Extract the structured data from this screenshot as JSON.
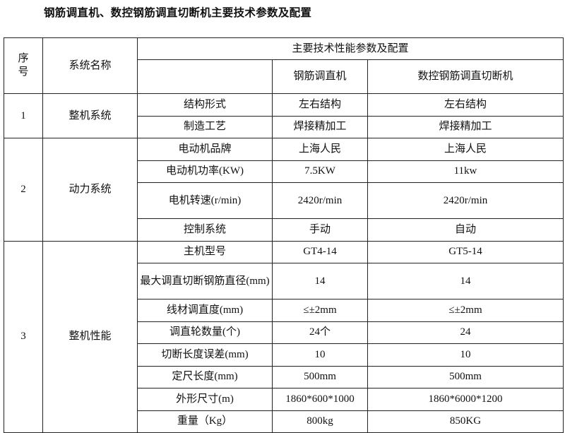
{
  "title": "钢筋调直机、数控钢筋调直切断机主要技术参数及配置",
  "header": {
    "seq": "序号",
    "system_name": "系统名称",
    "params_group": "主要技术性能参数及配置",
    "param_blank": "",
    "machine_a": "钢筋调直机",
    "machine_b": "数控钢筋调直切断机"
  },
  "groups": [
    {
      "seq": "1",
      "name": "整机系统",
      "rows": [
        {
          "param": "结构形式",
          "a": "左右结构",
          "b": "左右结构"
        },
        {
          "param": "制造工艺",
          "a": "焊接精加工",
          "b": "焊接精加工"
        }
      ]
    },
    {
      "seq": "2",
      "name": "动力系统",
      "rows": [
        {
          "param": "电动机品牌",
          "a": "上海人民",
          "b": "上海人民"
        },
        {
          "param": "电动机功率(KW)",
          "a": "7.5KW",
          "b": "11kw"
        },
        {
          "param": "电机转速(r/min)",
          "a": "2420r/min",
          "b": "2420r/min"
        },
        {
          "param": "控制系统",
          "a": "手动",
          "b": "自动"
        }
      ]
    },
    {
      "seq": "3",
      "name": "整机性能",
      "rows": [
        {
          "param": "主机型号",
          "a": "GT4-14",
          "b": "GT5-14"
        },
        {
          "param": "最大调直切断钢筋直径(mm)",
          "a": "14",
          "b": "14"
        },
        {
          "param": "线材调直度(mm)",
          "a": "≤±2mm",
          "b": "≤±2mm"
        },
        {
          "param": "调直轮数量(个)",
          "a": "24个",
          "b": "24"
        },
        {
          "param": "切断长度误差(mm)",
          "a": "10",
          "b": "10"
        },
        {
          "param": "定尺长度(mm)",
          "a": "500mm",
          "b": "500mm"
        },
        {
          "param": "外形尺寸(m)",
          "a": "1860*600*1000",
          "b": "1860*6000*1200"
        },
        {
          "param": "重量（Kg）",
          "a": "800kg",
          "b": "850KG"
        }
      ]
    }
  ]
}
